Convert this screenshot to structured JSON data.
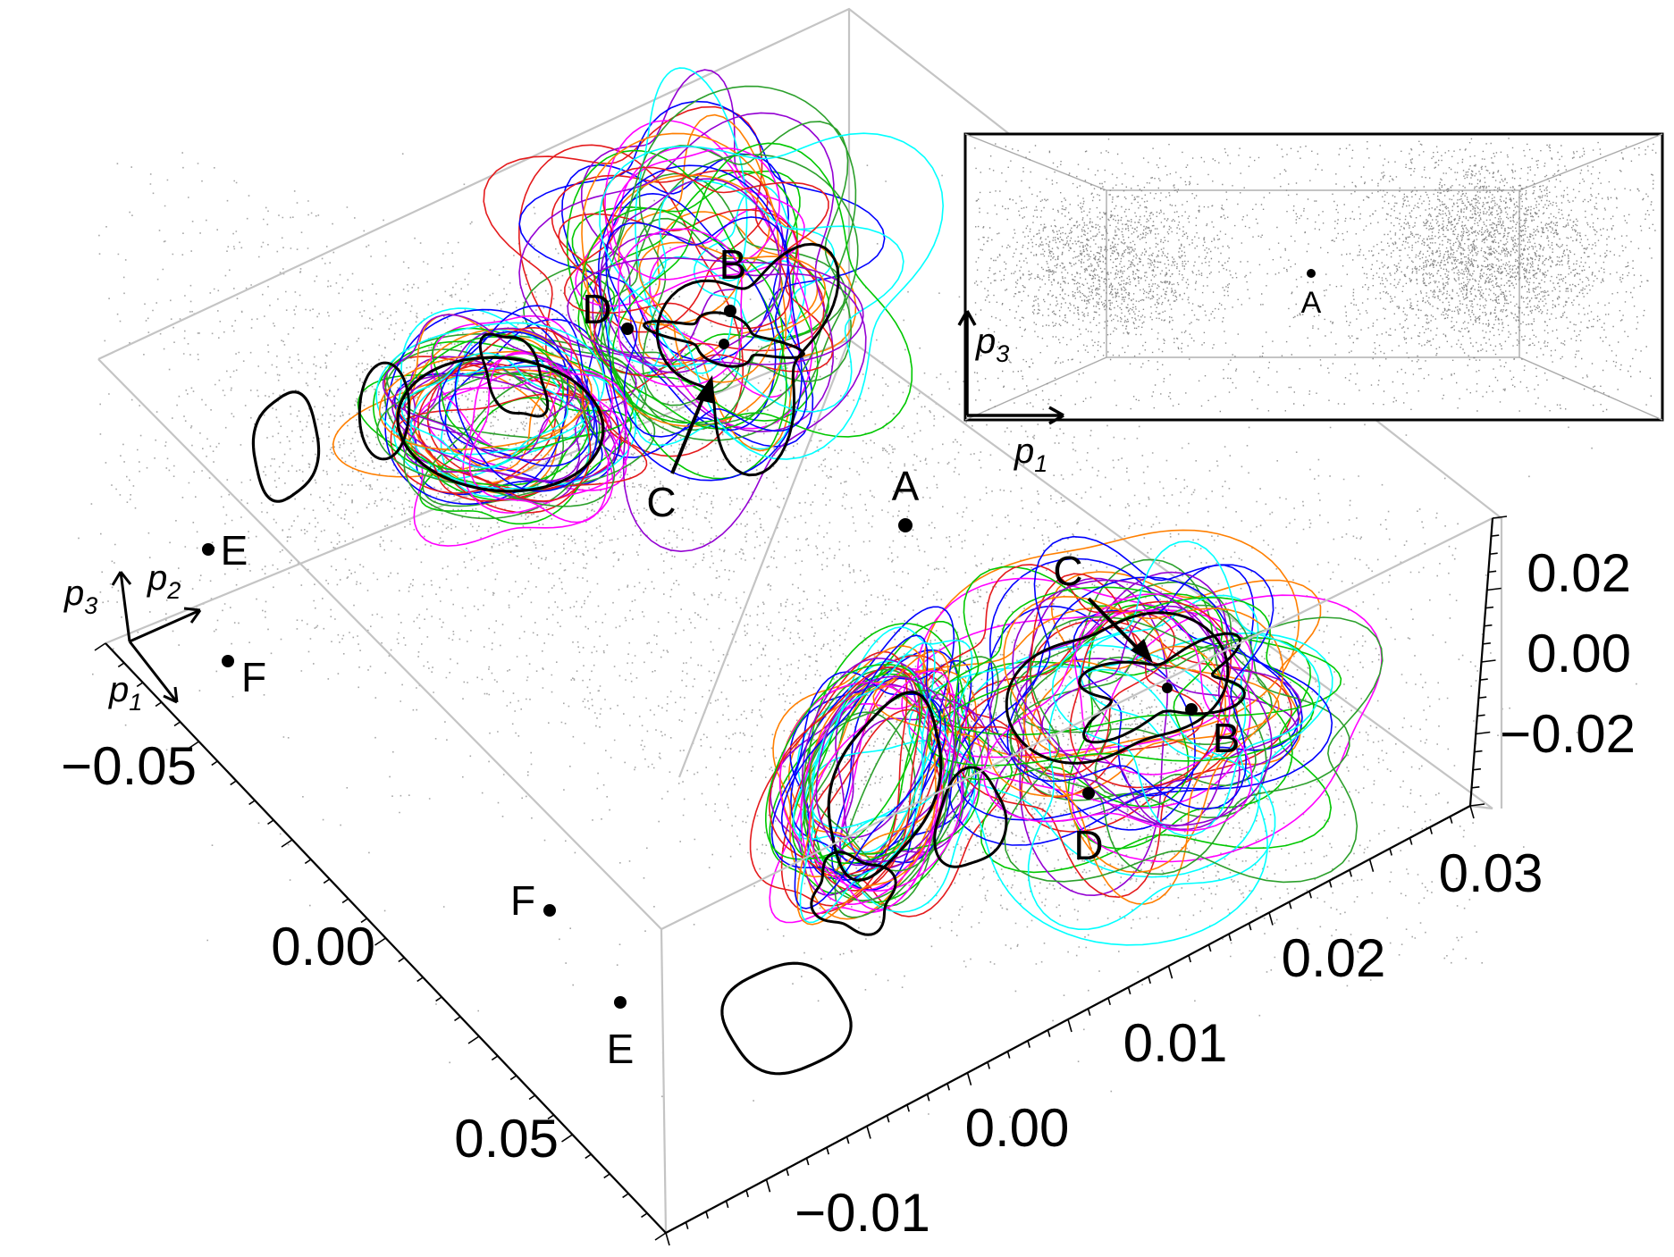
{
  "chart_data": [
    {
      "type": "scatter",
      "title": "",
      "projection": "3d",
      "axis_arrow_labels": [
        {
          "base": "p",
          "sub": "3"
        },
        {
          "base": "p",
          "sub": "2"
        },
        {
          "base": "p",
          "sub": "1"
        }
      ],
      "axes": {
        "p1": {
          "range": [
            -0.05,
            0.05
          ],
          "ticks": [
            "−0.05",
            "0.00",
            "0.05"
          ]
        },
        "p2": {
          "range": [
            -0.01,
            0.03
          ],
          "ticks": [
            "−0.01",
            "0.00",
            "0.01",
            "0.02",
            "0.03"
          ]
        },
        "p3": {
          "range": [
            -0.02,
            0.02
          ],
          "ticks": [
            "0.02",
            "0.00",
            "−0.02"
          ]
        }
      },
      "grid": false,
      "background_points": {
        "color": "#888888",
        "description": "dense gray point cloud concentrated around two lobes"
      },
      "trajectory_colors": [
        "#e41a1c",
        "#ff7f00",
        "#2ca02c",
        "#00c800",
        "#0000ff",
        "#00ffff",
        "#ff00ff",
        "#9400d3",
        "#000000"
      ],
      "points": [
        {
          "label": "A",
          "p1": 0.0,
          "p2": 0.01,
          "p3": 0.0
        },
        {
          "label": "B",
          "p1": -0.02,
          "p2": 0.02,
          "p3": 0.01
        },
        {
          "label": "B",
          "p1": 0.02,
          "p2": 0.02,
          "p3": -0.01
        },
        {
          "label": "C",
          "p1": -0.02,
          "p2": 0.015,
          "p3": 0.01
        },
        {
          "label": "C",
          "p1": 0.02,
          "p2": 0.015,
          "p3": -0.01
        },
        {
          "label": "D",
          "p1": -0.02,
          "p2": 0.01,
          "p3": 0.015
        },
        {
          "label": "D",
          "p1": 0.02,
          "p2": 0.01,
          "p3": -0.015
        },
        {
          "label": "E",
          "p1": -0.05,
          "p2": -0.005,
          "p3": 0.02
        },
        {
          "label": "E",
          "p1": 0.05,
          "p2": -0.005,
          "p3": -0.02
        },
        {
          "label": "F",
          "p1": -0.045,
          "p2": -0.005,
          "p3": 0.0
        },
        {
          "label": "F",
          "p1": 0.045,
          "p2": -0.005,
          "p3": 0.0
        }
      ]
    },
    {
      "type": "scatter",
      "title": "",
      "description": "inset projection onto p1-p3 plane",
      "xlabel": {
        "base": "p",
        "sub": "1"
      },
      "ylabel": {
        "base": "p",
        "sub": "3"
      },
      "points": [
        {
          "label": "A"
        }
      ]
    }
  ]
}
